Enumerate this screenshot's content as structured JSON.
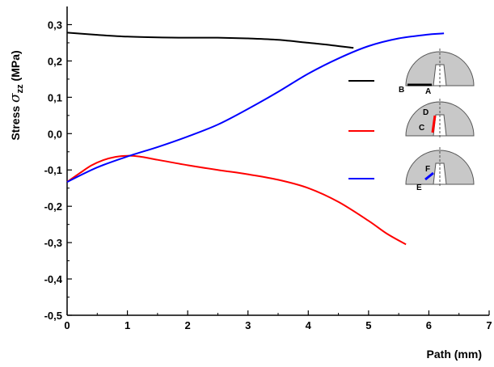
{
  "chart_data": {
    "type": "line",
    "xlabel": "Path (mm)",
    "ylabel": {
      "prefix": "Stress ",
      "symbol": "σ",
      "subscript": "zz",
      "suffix": " (MPa)"
    },
    "xlim": [
      0,
      7
    ],
    "ylim": [
      -0.5,
      0.35
    ],
    "x_ticks": [
      0,
      1,
      2,
      3,
      4,
      5,
      6,
      7
    ],
    "x_tick_labels": [
      "0",
      "1",
      "2",
      "3",
      "4",
      "5",
      "6",
      "7"
    ],
    "y_ticks": [
      0.3,
      0.2,
      0.1,
      0.0,
      -0.1,
      -0.2,
      -0.3,
      -0.4,
      -0.5
    ],
    "y_tick_labels": [
      "0,3",
      "0,2",
      "0,1",
      "0,0",
      "-0,1",
      "-0,2",
      "-0,3",
      "-0,4",
      "-0,5"
    ],
    "grid": false,
    "legend_position": "right",
    "series": [
      {
        "color": "#000000",
        "path_labels": [
          "B",
          "A"
        ],
        "x": [
          0,
          0.5,
          1,
          1.5,
          2,
          2.5,
          3,
          3.5,
          4,
          4.4,
          4.75
        ],
        "y": [
          0.278,
          0.272,
          0.267,
          0.265,
          0.264,
          0.264,
          0.262,
          0.258,
          0.25,
          0.243,
          0.236
        ]
      },
      {
        "color": "#ff0000",
        "path_labels": [
          "C",
          "D"
        ],
        "x": [
          0,
          0.2,
          0.4,
          0.6,
          0.8,
          1.0,
          1.2,
          1.5,
          2,
          2.5,
          3,
          3.5,
          4,
          4.5,
          5,
          5.3,
          5.62
        ],
        "y": [
          -0.133,
          -0.11,
          -0.088,
          -0.073,
          -0.064,
          -0.061,
          -0.063,
          -0.072,
          -0.087,
          -0.1,
          -0.112,
          -0.127,
          -0.15,
          -0.188,
          -0.24,
          -0.275,
          -0.305
        ]
      },
      {
        "color": "#0000ff",
        "path_labels": [
          "E",
          "F"
        ],
        "x": [
          0,
          0.5,
          1,
          1.5,
          2,
          2.5,
          3,
          3.5,
          4,
          4.5,
          5,
          5.5,
          6,
          6.25
        ],
        "y": [
          -0.133,
          -0.093,
          -0.063,
          -0.037,
          -0.008,
          0.025,
          0.068,
          0.115,
          0.165,
          0.207,
          0.241,
          0.262,
          0.273,
          0.276
        ]
      }
    ]
  }
}
